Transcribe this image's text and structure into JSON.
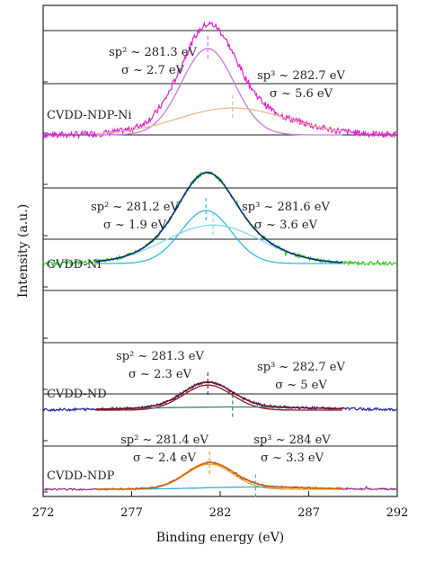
{
  "chart_data": {
    "type": "line",
    "xlabel": "Binding energy (eV)",
    "ylabel": "Intensity (a.u.)",
    "xlim": [
      272,
      292
    ],
    "xticks": [
      272,
      277,
      282,
      287,
      292
    ],
    "grid": "horizontal",
    "panels": [
      {
        "name": "CVDD-NDP-Ni",
        "color": "#e020d0",
        "amplitude": 1.0,
        "noise": 0.03,
        "components": [
          {
            "label_line1": "sp² ~ 281.3 eV",
            "label_line2": "σ ~ 2.7 eV",
            "center": 281.3,
            "sigma": 2.7,
            "amplitude": 0.8,
            "color": "#c878e0",
            "width_scale": 0.55
          },
          {
            "label_line1": "sp³ ~ 282.7 eV",
            "label_line2": "σ ~ 5.6 eV",
            "center": 282.7,
            "sigma": 5.6,
            "amplitude": 0.25,
            "color": "#e8b890",
            "width_scale": 0.55
          }
        ]
      },
      {
        "name": "CVDD-Ni",
        "color": "#22cc22",
        "amplitude": 1.0,
        "noise": 0.02,
        "fit_color": "#0a2080",
        "components": [
          {
            "label_line1": "sp² ~ 281.2 eV",
            "label_line2": "σ ~ 1.9 eV",
            "center": 281.2,
            "sigma": 1.9,
            "amplitude": 0.62,
            "color": "#30b8e8",
            "width_scale": 0.75
          },
          {
            "label_line1": "sp³ ~ 281.6 eV",
            "label_line2": "σ ~ 3.6 eV",
            "center": 281.6,
            "sigma": 3.6,
            "amplitude": 0.45,
            "color": "#80d8f0",
            "width_scale": 0.75
          }
        ]
      },
      {
        "name": "CVDD-ND",
        "color": "#2020a0",
        "amplitude": 0.62,
        "noise": 0.025,
        "fit_color": "#7a1020",
        "components": [
          {
            "label_line1": "sp² ~ 281.3 eV",
            "label_line2": "σ ~ 2.3 eV",
            "center": 281.3,
            "sigma": 2.3,
            "amplitude": 0.48,
            "color": "#8a1a20",
            "width_scale": 0.6
          },
          {
            "label_line1": "sp³ ~ 282.7 eV",
            "label_line2": "σ ~ 5 eV",
            "center": 282.7,
            "sigma": 5.0,
            "amplitude": 0.06,
            "color": "#2a8a6a",
            "width_scale": 1.0
          }
        ]
      },
      {
        "name": "CVDD-NDP",
        "color": "#8a2a8a",
        "amplitude": 0.58,
        "noise": 0.02,
        "fit_color": "#cc6600",
        "components": [
          {
            "label_line1": "sp² ~ 281.4 eV",
            "label_line2": "σ ~ 2.4 eV",
            "center": 281.4,
            "sigma": 2.4,
            "amplitude": 0.56,
            "color": "#f0a020",
            "width_scale": 0.55
          },
          {
            "label_line1": "sp³ ~ 284 eV",
            "label_line2": "σ ~ 3.3 eV",
            "center": 284.0,
            "sigma": 3.3,
            "amplitude": 0.05,
            "color": "#30b0e0",
            "width_scale": 0.9
          }
        ]
      }
    ]
  }
}
